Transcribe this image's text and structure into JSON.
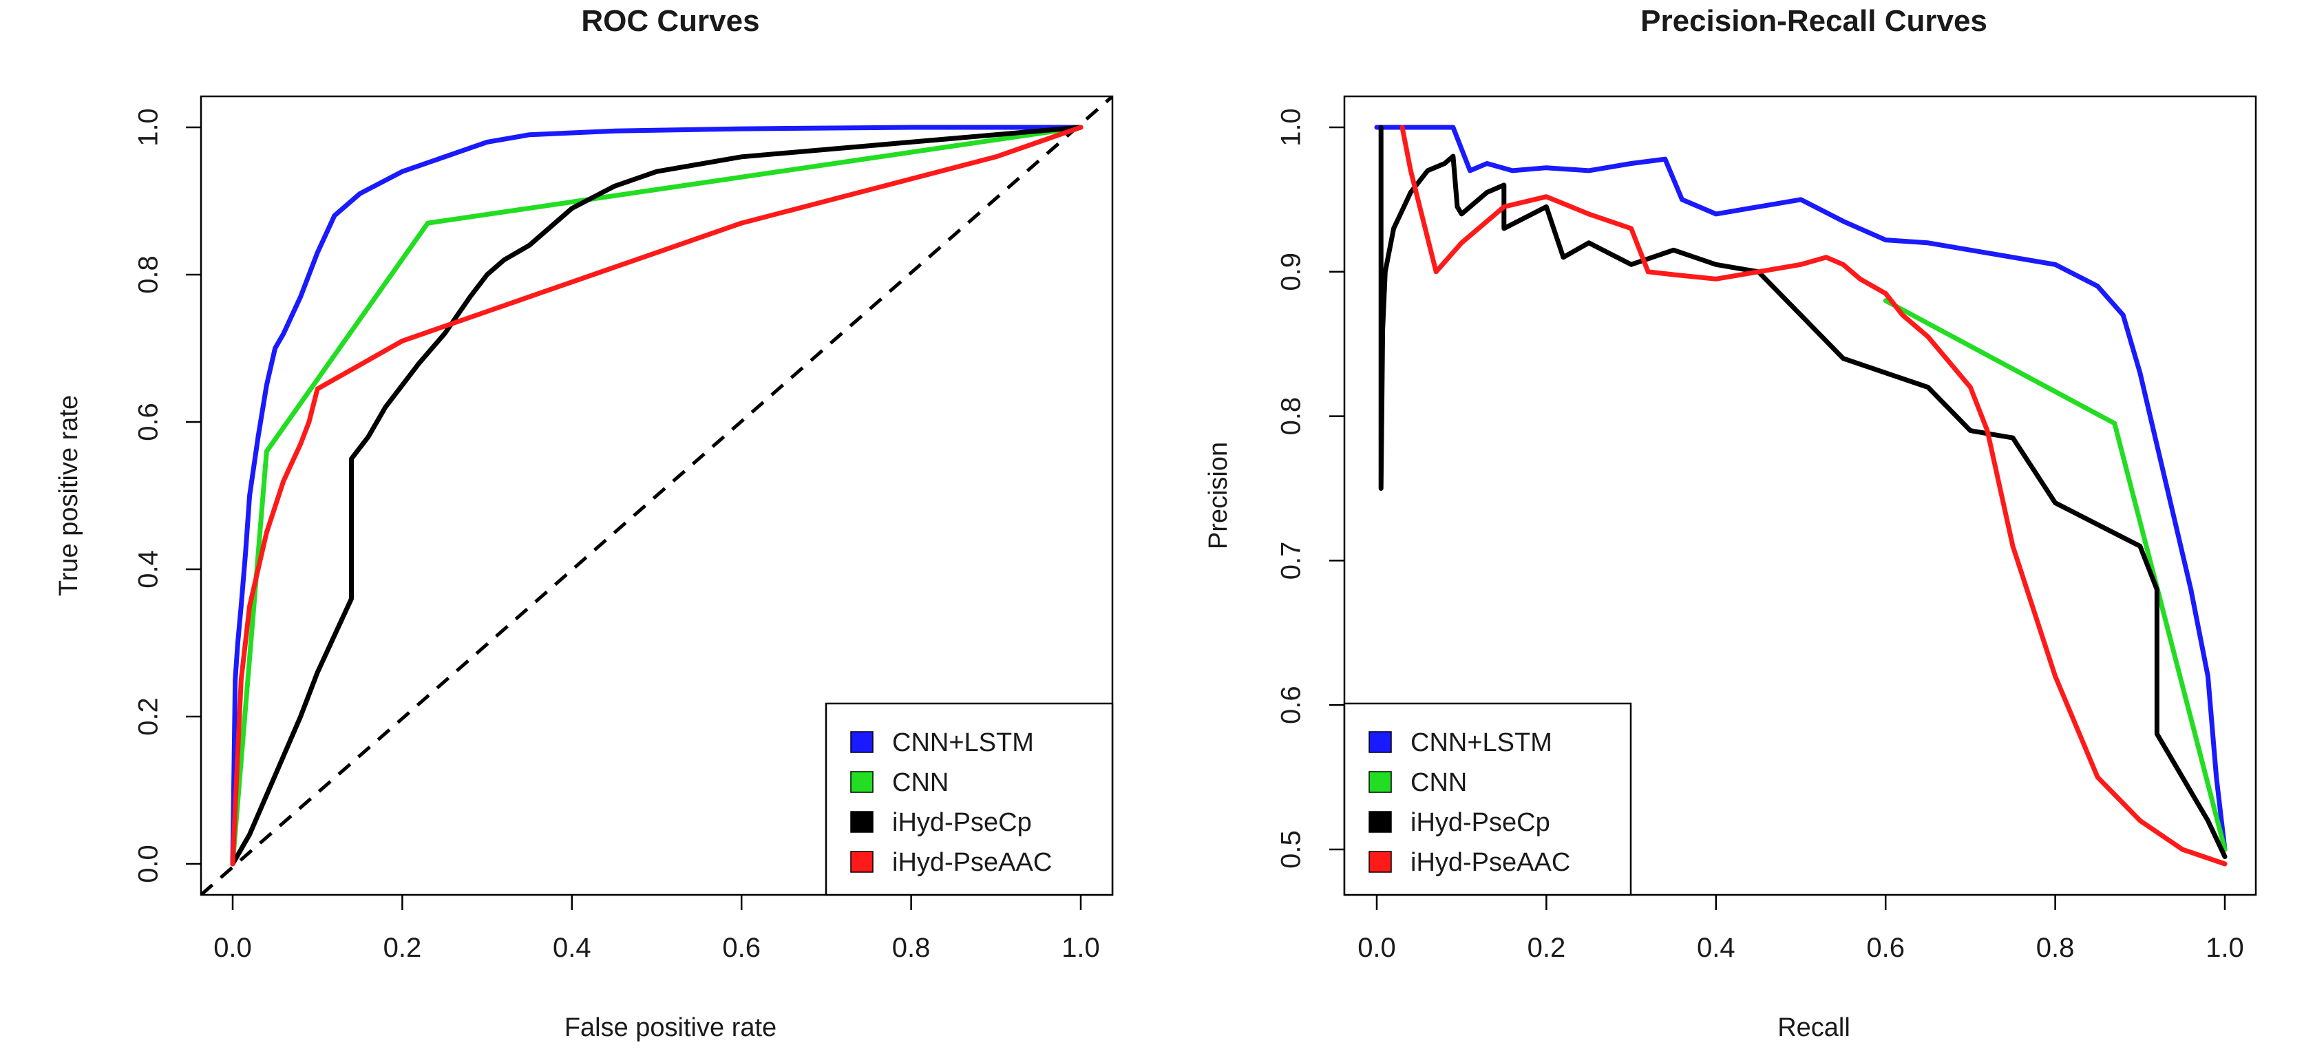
{
  "colors": {
    "CNN+LSTM": "#1a1aff",
    "CNN": "#22dd22",
    "iHyd-PseCp": "#000000",
    "iHyd-PseAAC": "#ff1a1a",
    "diagonal": "#000000"
  },
  "chart_data": [
    {
      "type": "line",
      "title": "ROC Curves",
      "xlabel": "False positive rate",
      "ylabel": "True positive rate",
      "xlim": [
        0,
        1
      ],
      "ylim": [
        0,
        1
      ],
      "xticks": [
        "0.0",
        "0.2",
        "0.4",
        "0.6",
        "0.8",
        "1.0"
      ],
      "yticks": [
        "0.0",
        "0.2",
        "0.4",
        "0.6",
        "0.8",
        "1.0"
      ],
      "grid": false,
      "legend_position": "bottom-right",
      "legend": [
        "CNN+LSTM",
        "CNN",
        "iHyd-PseCp",
        "iHyd-PseAAC"
      ],
      "series": [
        {
          "name": "CNN+LSTM",
          "x": [
            0,
            0.003,
            0.006,
            0.01,
            0.015,
            0.02,
            0.03,
            0.04,
            0.05,
            0.06,
            0.08,
            0.1,
            0.12,
            0.15,
            0.2,
            0.25,
            0.3,
            0.35,
            0.45,
            0.6,
            0.8,
            1.0
          ],
          "y": [
            0,
            0.25,
            0.3,
            0.35,
            0.42,
            0.5,
            0.58,
            0.65,
            0.7,
            0.72,
            0.77,
            0.83,
            0.88,
            0.91,
            0.94,
            0.96,
            0.98,
            0.99,
            0.995,
            0.998,
            1.0,
            1.0
          ]
        },
        {
          "name": "CNN",
          "x": [
            0,
            0.04,
            0.23,
            1.0
          ],
          "y": [
            0,
            0.56,
            0.87,
            1.0
          ]
        },
        {
          "name": "iHyd-PseCp",
          "x": [
            0,
            0.02,
            0.05,
            0.08,
            0.1,
            0.12,
            0.14,
            0.14,
            0.16,
            0.18,
            0.2,
            0.22,
            0.25,
            0.28,
            0.3,
            0.32,
            0.35,
            0.4,
            0.45,
            0.5,
            0.55,
            0.6,
            0.7,
            0.8,
            1.0
          ],
          "y": [
            0,
            0.04,
            0.12,
            0.2,
            0.26,
            0.31,
            0.36,
            0.55,
            0.58,
            0.62,
            0.65,
            0.68,
            0.72,
            0.77,
            0.8,
            0.82,
            0.84,
            0.89,
            0.92,
            0.94,
            0.95,
            0.96,
            0.97,
            0.98,
            1.0
          ]
        },
        {
          "name": "iHyd-PseAAC",
          "x": [
            0,
            0.01,
            0.02,
            0.04,
            0.06,
            0.08,
            0.09,
            0.1,
            0.2,
            0.3,
            0.4,
            0.5,
            0.6,
            0.7,
            0.8,
            0.9,
            1.0
          ],
          "y": [
            0,
            0.25,
            0.35,
            0.45,
            0.52,
            0.57,
            0.6,
            0.645,
            0.71,
            0.75,
            0.79,
            0.83,
            0.87,
            0.9,
            0.93,
            0.96,
            1.0
          ]
        }
      ],
      "reference_line": {
        "x": [
          0,
          1
        ],
        "y": [
          0,
          1
        ],
        "style": "dashed"
      }
    },
    {
      "type": "line",
      "title": "Precision-Recall Curves",
      "xlabel": "Recall",
      "ylabel": "Precision",
      "xlim": [
        0,
        1
      ],
      "ylim": [
        0.49,
        1.0
      ],
      "xticks": [
        "0.0",
        "0.2",
        "0.4",
        "0.6",
        "0.8",
        "1.0"
      ],
      "yticks": [
        "0.5",
        "0.6",
        "0.7",
        "0.8",
        "0.9",
        "1.0"
      ],
      "grid": false,
      "legend_position": "bottom-left",
      "legend": [
        "CNN+LSTM",
        "CNN",
        "iHyd-PseCp",
        "iHyd-PseAAC"
      ],
      "series": [
        {
          "name": "CNN+LSTM",
          "x": [
            0,
            0.05,
            0.09,
            0.11,
            0.13,
            0.16,
            0.2,
            0.25,
            0.3,
            0.34,
            0.36,
            0.4,
            0.45,
            0.5,
            0.55,
            0.6,
            0.65,
            0.7,
            0.75,
            0.8,
            0.85,
            0.88,
            0.9,
            0.92,
            0.94,
            0.96,
            0.98,
            0.99,
            1.0
          ],
          "y": [
            1.0,
            1.0,
            1.0,
            0.97,
            0.975,
            0.97,
            0.972,
            0.97,
            0.975,
            0.978,
            0.95,
            0.94,
            0.945,
            0.95,
            0.935,
            0.922,
            0.92,
            0.915,
            0.91,
            0.905,
            0.89,
            0.87,
            0.83,
            0.78,
            0.73,
            0.68,
            0.62,
            0.55,
            0.5
          ]
        },
        {
          "name": "CNN",
          "x": [
            0.6,
            0.87,
            1.0
          ],
          "y": [
            0.88,
            0.795,
            0.5
          ]
        },
        {
          "name": "iHyd-PseCp",
          "x": [
            0.005,
            0.005,
            0.007,
            0.01,
            0.02,
            0.04,
            0.06,
            0.08,
            0.09,
            0.095,
            0.1,
            0.13,
            0.15,
            0.15,
            0.2,
            0.22,
            0.25,
            0.3,
            0.35,
            0.4,
            0.45,
            0.5,
            0.55,
            0.6,
            0.65,
            0.7,
            0.75,
            0.8,
            0.85,
            0.9,
            0.92,
            0.92,
            0.94,
            0.96,
            0.98,
            1.0
          ],
          "y": [
            1.0,
            0.75,
            0.86,
            0.9,
            0.93,
            0.955,
            0.97,
            0.975,
            0.98,
            0.945,
            0.94,
            0.955,
            0.96,
            0.93,
            0.945,
            0.91,
            0.92,
            0.905,
            0.915,
            0.905,
            0.9,
            0.87,
            0.84,
            0.83,
            0.82,
            0.79,
            0.785,
            0.74,
            0.725,
            0.71,
            0.68,
            0.58,
            0.56,
            0.54,
            0.52,
            0.495
          ]
        },
        {
          "name": "iHyd-PseAAC",
          "x": [
            0.03,
            0.04,
            0.07,
            0.1,
            0.15,
            0.2,
            0.25,
            0.3,
            0.32,
            0.35,
            0.4,
            0.45,
            0.5,
            0.53,
            0.55,
            0.57,
            0.6,
            0.62,
            0.65,
            0.7,
            0.72,
            0.75,
            0.8,
            0.85,
            0.9,
            0.95,
            1.0
          ],
          "y": [
            1.0,
            0.97,
            0.9,
            0.92,
            0.945,
            0.952,
            0.94,
            0.93,
            0.9,
            0.898,
            0.895,
            0.9,
            0.905,
            0.91,
            0.905,
            0.895,
            0.885,
            0.87,
            0.855,
            0.82,
            0.79,
            0.71,
            0.62,
            0.55,
            0.52,
            0.5,
            0.49
          ]
        }
      ]
    }
  ]
}
